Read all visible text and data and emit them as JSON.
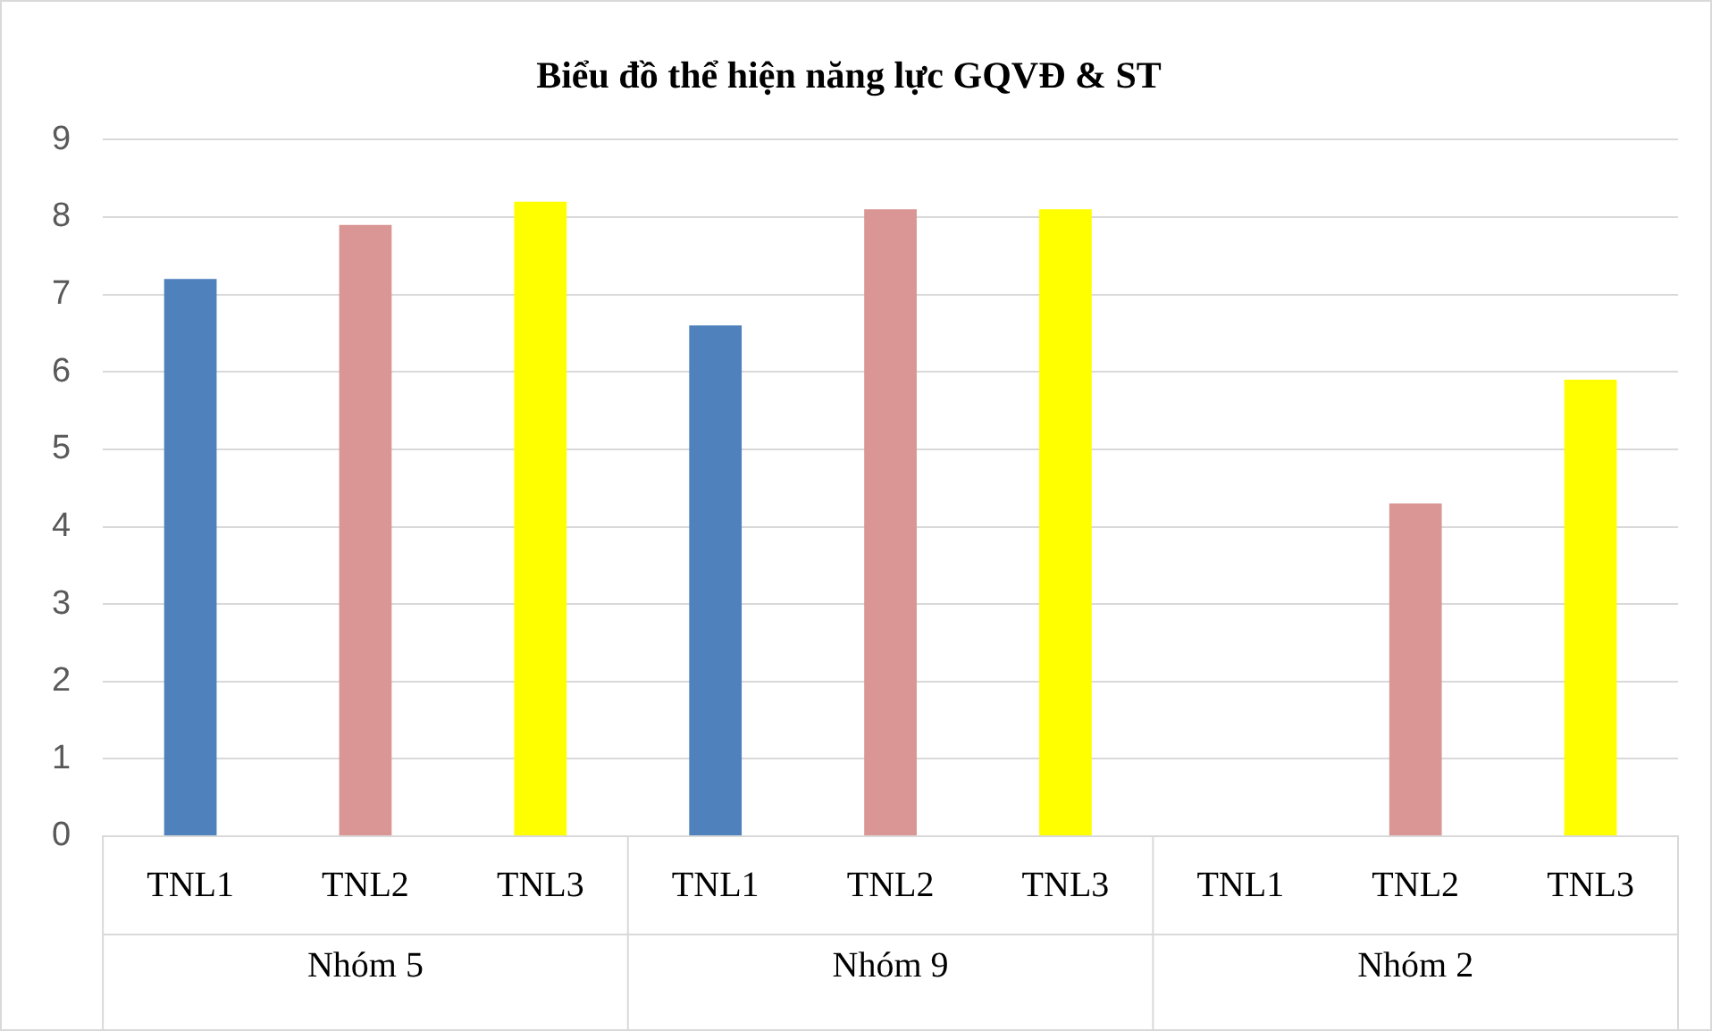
{
  "chart_data": {
    "type": "bar",
    "title": "Biểu đồ thể hiện năng lực GQVĐ & ST",
    "categories": [
      "TNL1",
      "TNL2",
      "TNL3",
      "TNL1",
      "TNL2",
      "TNL3",
      "TNL1",
      "TNL2",
      "TNL3"
    ],
    "values": [
      7.2,
      7.9,
      8.2,
      6.6,
      8.1,
      8.1,
      null,
      4.3,
      5.9
    ],
    "colors": [
      "#4f81bd",
      "#d99694",
      "#ffff00",
      "#4f81bd",
      "#d99694",
      "#ffff00",
      "#4f81bd",
      "#d99694",
      "#ffff00"
    ],
    "ylim": [
      0,
      9
    ],
    "yticks": [
      0,
      1,
      2,
      3,
      4,
      5,
      6,
      7,
      8,
      9
    ],
    "grid": "y",
    "legend": false,
    "annotations": [
      "Nhóm 5",
      "Nhóm 9",
      "Nhóm 2"
    ]
  }
}
